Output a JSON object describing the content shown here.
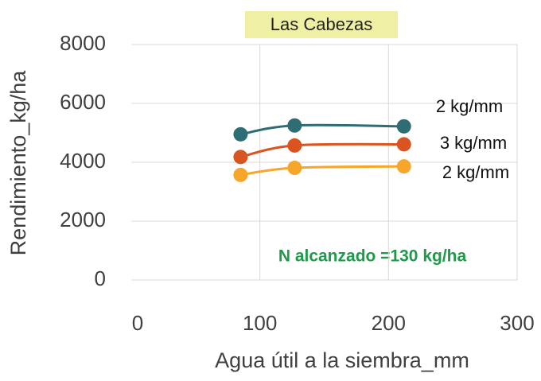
{
  "chart_data": {
    "type": "line",
    "title": "Las Cabezas",
    "x_label": "Agua útil a la siembra_mm",
    "y_label": "Rendimiento_kg/ha",
    "annotation": "N alcanzado =130 kg/ha",
    "x": [
      85,
      127,
      212
    ],
    "series": [
      {
        "label": "2 kg/mm",
        "color": "#2f6d74",
        "values": [
          4950,
          5250,
          5220
        ]
      },
      {
        "label": "3 kg/mm",
        "color": "#d9541e",
        "values": [
          4180,
          4570,
          4610
        ]
      },
      {
        "label": "2 kg/mm",
        "color": "#f6a62a",
        "values": [
          3570,
          3810,
          3860
        ]
      }
    ],
    "xlim": [
      0,
      300
    ],
    "xticks": [
      0,
      100,
      200,
      300
    ],
    "ylim": [
      0,
      8000
    ],
    "yticks": [
      0,
      2000,
      4000,
      6000,
      8000
    ],
    "grid": true,
    "smooth": true
  }
}
